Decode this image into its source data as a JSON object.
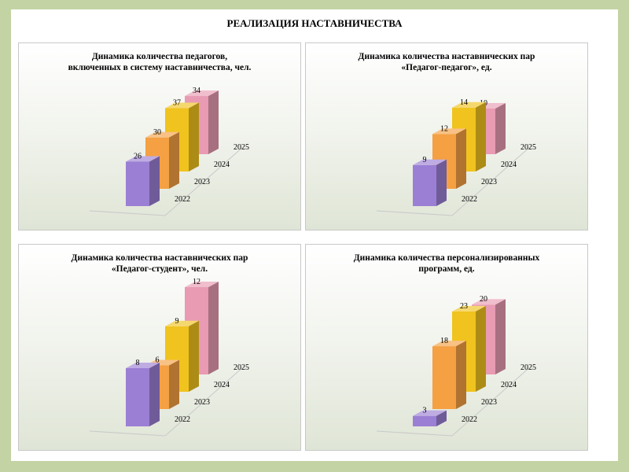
{
  "slide": {
    "title": "РЕАЛИЗАЦИЯ НАСТАВНИЧЕСТВА"
  },
  "colors": [
    "#9b7fd4",
    "#f4a043",
    "#f0c31e",
    "#e89bb2"
  ],
  "chart_data": [
    {
      "type": "bar",
      "title_lines": [
        "Динамика количества педагогов,",
        "включенных в систему наставничества, чел."
      ],
      "categories": [
        "2022",
        "2023",
        "2024",
        "2025"
      ],
      "values": [
        26,
        30,
        37,
        34
      ],
      "value_labels": [
        "26",
        "30",
        "37",
        "34"
      ],
      "ylim": [
        0,
        40
      ],
      "grid": false,
      "style": "3d-columns"
    },
    {
      "type": "bar",
      "title_lines": [
        "Динамика количества наставнических пар",
        "«Педагог-педагог», ед."
      ],
      "categories": [
        "2022",
        "2023",
        "2024",
        "2025"
      ],
      "values": [
        9,
        12,
        14,
        10
      ],
      "value_labels": [
        "9",
        "12",
        "14",
        "10"
      ],
      "ylim": [
        0,
        15
      ],
      "grid": false,
      "style": "3d-columns"
    },
    {
      "type": "bar",
      "title_lines": [
        "Динамика количества наставнических пар",
        "«Педагог-студент», чел."
      ],
      "categories": [
        "2022",
        "2023",
        "2024",
        "2025"
      ],
      "values": [
        8,
        6,
        9,
        12
      ],
      "value_labels": [
        "8",
        "6",
        "9",
        "12"
      ],
      "ylim": [
        0,
        12
      ],
      "grid": false,
      "style": "3d-columns"
    },
    {
      "type": "bar",
      "title_lines": [
        "Динамика количества персонализированных",
        "программ, ед."
      ],
      "categories": [
        "2022",
        "2023",
        "2024",
        "2025"
      ],
      "values": [
        3,
        18,
        23,
        20
      ],
      "value_labels": [
        "3",
        "18",
        "23",
        "20"
      ],
      "ylim": [
        0,
        25
      ],
      "grid": false,
      "style": "3d-columns"
    }
  ]
}
